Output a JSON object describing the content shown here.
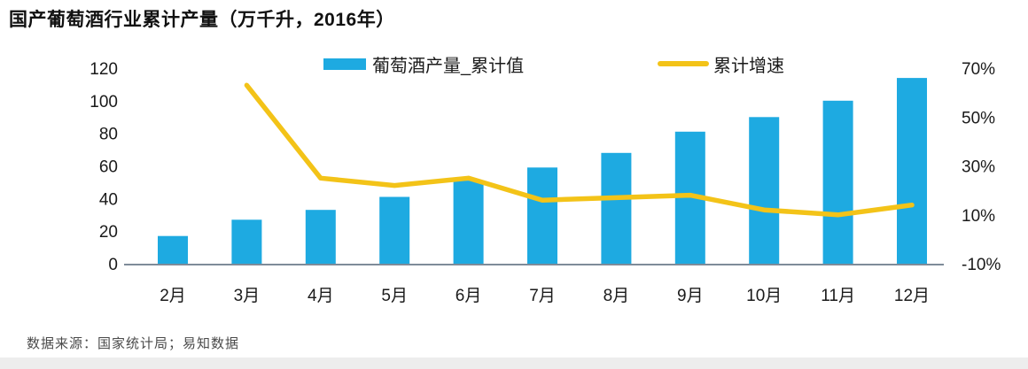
{
  "title": "国产葡萄酒行业累计产量（万千升，2016年）",
  "legend": [
    {
      "label": "葡萄酒产量_累计值",
      "type": "bar",
      "color": "#1EAAE1"
    },
    {
      "label": "累计增速",
      "type": "line",
      "color": "#F3C318"
    }
  ],
  "footer": {
    "source": "数据来源：国家统计局；易知数据"
  },
  "colors": {
    "bar": "#1EAAE1",
    "line": "#F3C318",
    "axis": "#7E8B99",
    "text": "#1a1a1a"
  },
  "chart_data": {
    "type": "bar",
    "title": "国产葡萄酒行业累计产量（万千升，2016年）",
    "categories": [
      "2月",
      "3月",
      "4月",
      "5月",
      "6月",
      "7月",
      "8月",
      "9月",
      "10月",
      "11月",
      "12月"
    ],
    "series": [
      {
        "name": "葡萄酒产量_累计值",
        "type": "bar",
        "axis": "left",
        "color": "#1EAAE1",
        "values": [
          17,
          27,
          33,
          41,
          51,
          59,
          68,
          81,
          90,
          100,
          114
        ]
      },
      {
        "name": "累计增速",
        "type": "line",
        "axis": "right",
        "color": "#F3C318",
        "values_pct": [
          null,
          63,
          25,
          22,
          25,
          16,
          17,
          18,
          12,
          10,
          14
        ]
      }
    ],
    "left_axis": {
      "ticks": [
        0,
        20,
        40,
        60,
        80,
        100,
        120
      ],
      "range": [
        0,
        120
      ]
    },
    "right_axis": {
      "ticks": [
        "-10%",
        "10%",
        "30%",
        "50%",
        "70%"
      ],
      "tick_values": [
        -10,
        10,
        30,
        50,
        70
      ],
      "range_pct": [
        -10,
        70
      ]
    },
    "grid": false,
    "legend_position": "top-center",
    "xlabel": "",
    "ylabel_left": "万千升",
    "ylabel_right": "%"
  }
}
